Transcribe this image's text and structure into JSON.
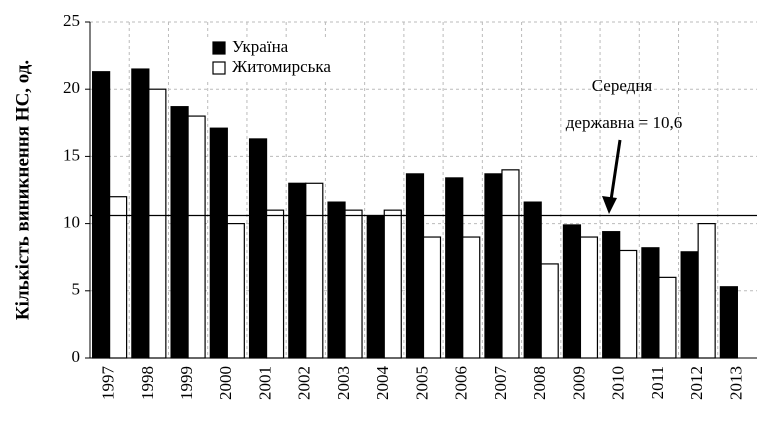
{
  "chart_data": {
    "type": "bar",
    "ylabel": "Кількість виникнення НС, од.",
    "categories": [
      "1997",
      "1998",
      "1999",
      "2000",
      "2001",
      "2002",
      "2003",
      "2004",
      "2005",
      "2006",
      "2007",
      "2008",
      "2009",
      "2010",
      "2011",
      "2012",
      "2013"
    ],
    "series": [
      {
        "name": "Україна",
        "color": "#000000",
        "values": [
          21.3,
          21.5,
          18.7,
          17.1,
          16.3,
          13,
          11.6,
          10.6,
          13.7,
          13.4,
          13.7,
          11.6,
          9.9,
          9.4,
          8.2,
          7.9,
          5.3
        ]
      },
      {
        "name": "Житомирська",
        "color": "#ffffff",
        "values": [
          12,
          20,
          18,
          10,
          11,
          13,
          11,
          11,
          9,
          9,
          14,
          7,
          9,
          8,
          6,
          10,
          null
        ]
      }
    ],
    "reference_line": 10.6,
    "annotation": [
      "Середня",
      "державна = 10,6"
    ],
    "ylim": [
      0,
      25
    ],
    "yticks": [
      0,
      5,
      10,
      15,
      20,
      25
    ],
    "grid": true
  }
}
